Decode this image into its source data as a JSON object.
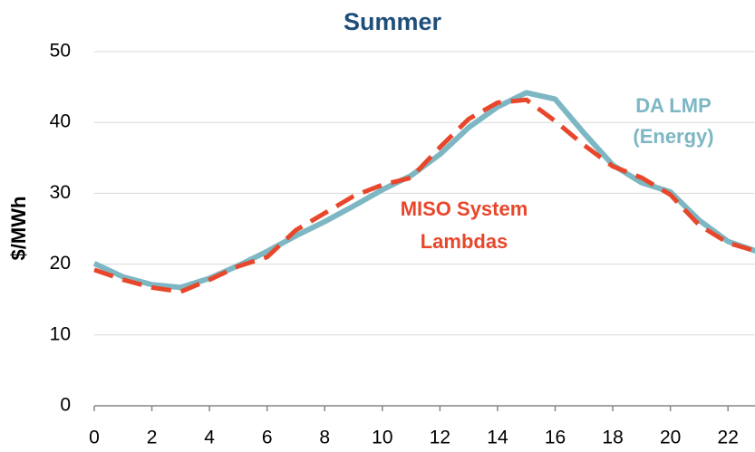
{
  "chart_data": {
    "type": "line",
    "title": "Summer",
    "y_label": "$/MWh",
    "x": [
      0,
      1,
      2,
      3,
      4,
      5,
      6,
      7,
      8,
      9,
      10,
      11,
      12,
      13,
      14,
      15,
      16,
      17,
      18,
      19,
      20,
      21,
      22,
      23
    ],
    "series": [
      {
        "color": "#7db7c3",
        "dash": false,
        "values": [
          20.1,
          18.2,
          17.1,
          16.7,
          18.0,
          19.8,
          21.8,
          24.0,
          26.0,
          28.2,
          30.5,
          32.5,
          35.5,
          39.3,
          42.2,
          44.2,
          43.3,
          38.5,
          34.0,
          31.5,
          30.2,
          26.2,
          23.2,
          21.8
        ]
      },
      {
        "color": "#e8472b",
        "dash": true,
        "values": [
          19.2,
          17.8,
          16.7,
          16.1,
          17.8,
          19.7,
          21.0,
          24.8,
          27.2,
          29.6,
          31.2,
          32.2,
          36.5,
          40.5,
          42.8,
          43.2,
          40.2,
          36.8,
          33.8,
          32.2,
          29.8,
          25.5,
          23.0,
          21.8
        ]
      }
    ],
    "annotations": [
      {
        "text": "DA LMP",
        "color": "#7db7c3"
      },
      {
        "text": "(Energy)",
        "color": "#7db7c3"
      },
      {
        "text": "MISO System",
        "color": "#e8472b"
      },
      {
        "text": "Lambdas",
        "color": "#e8472b"
      }
    ],
    "xlim": [
      0,
      23
    ],
    "ylim": [
      0,
      50
    ],
    "xticks": [
      0,
      2,
      4,
      6,
      8,
      10,
      12,
      14,
      16,
      18,
      20,
      22
    ],
    "yticks": [
      0,
      10,
      20,
      30,
      40,
      50
    ],
    "grid": true
  }
}
